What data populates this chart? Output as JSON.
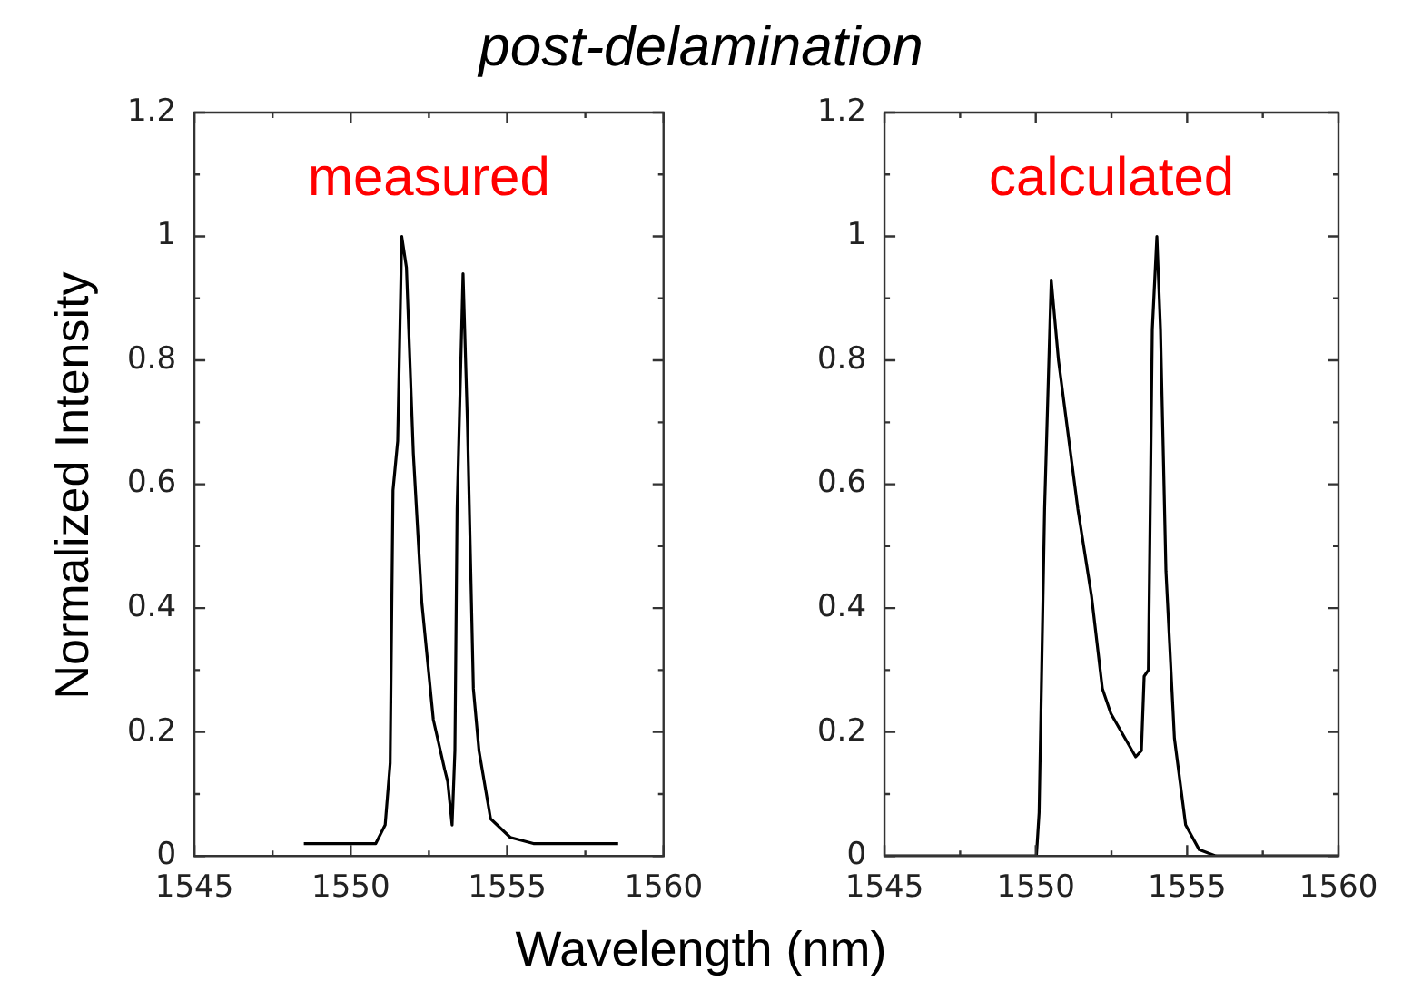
{
  "chart_data": [
    {
      "type": "line",
      "title": "post-delamination",
      "xlabel": "Wavelength (nm)",
      "ylabel": "Normalized Intensity",
      "annotations": [
        "measured"
      ],
      "x": [
        1548.5,
        1550.8,
        1551.1,
        1551.26,
        1551.35,
        1551.5,
        1551.63,
        1551.78,
        1552.0,
        1552.27,
        1552.64,
        1553.0,
        1553.1,
        1553.24,
        1553.33,
        1553.4,
        1553.59,
        1553.73,
        1553.92,
        1554.1,
        1554.47,
        1555.1,
        1555.84,
        1558.55
      ],
      "series": [
        {
          "color": "#000000",
          "values": [
            0.02,
            0.02,
            0.05,
            0.15,
            0.59,
            0.67,
            1.0,
            0.95,
            0.65,
            0.41,
            0.22,
            0.14,
            0.12,
            0.05,
            0.17,
            0.56,
            0.94,
            0.7,
            0.27,
            0.17,
            0.06,
            0.03,
            0.02,
            0.02
          ]
        }
      ],
      "xlim": [
        1545,
        1560
      ],
      "xticks": [
        1545,
        1550,
        1555,
        1560
      ],
      "ylim": [
        0,
        1.2
      ],
      "yticks": [
        0,
        0.2,
        0.4,
        0.6,
        0.8,
        1,
        1.2
      ],
      "grid": false,
      "legend": false,
      "marker": "none",
      "line_style": "solid"
    },
    {
      "type": "line",
      "annotations": [
        "calculated"
      ],
      "x": [
        1545,
        1550.02,
        1550.11,
        1550.29,
        1550.51,
        1550.75,
        1551.39,
        1551.84,
        1552.2,
        1552.48,
        1553.3,
        1553.49,
        1553.58,
        1553.72,
        1553.85,
        1554.0,
        1554.12,
        1554.3,
        1554.58,
        1554.95,
        1555.4,
        1555.95,
        1560
      ],
      "series": [
        {
          "color": "#000000",
          "values": [
            0,
            0,
            0.07,
            0.56,
            0.93,
            0.8,
            0.56,
            0.42,
            0.27,
            0.23,
            0.16,
            0.17,
            0.29,
            0.3,
            0.85,
            1.0,
            0.85,
            0.46,
            0.19,
            0.05,
            0.01,
            0,
            0
          ]
        }
      ],
      "xlim": [
        1545,
        1560
      ],
      "xticks": [
        1545,
        1550,
        1555,
        1560
      ],
      "ylim": [
        0,
        1.2
      ],
      "yticks": [
        0,
        0.2,
        0.4,
        0.6,
        0.8,
        1,
        1.2
      ],
      "grid": false,
      "legend": false,
      "marker": "none",
      "line_style": "solid"
    }
  ]
}
